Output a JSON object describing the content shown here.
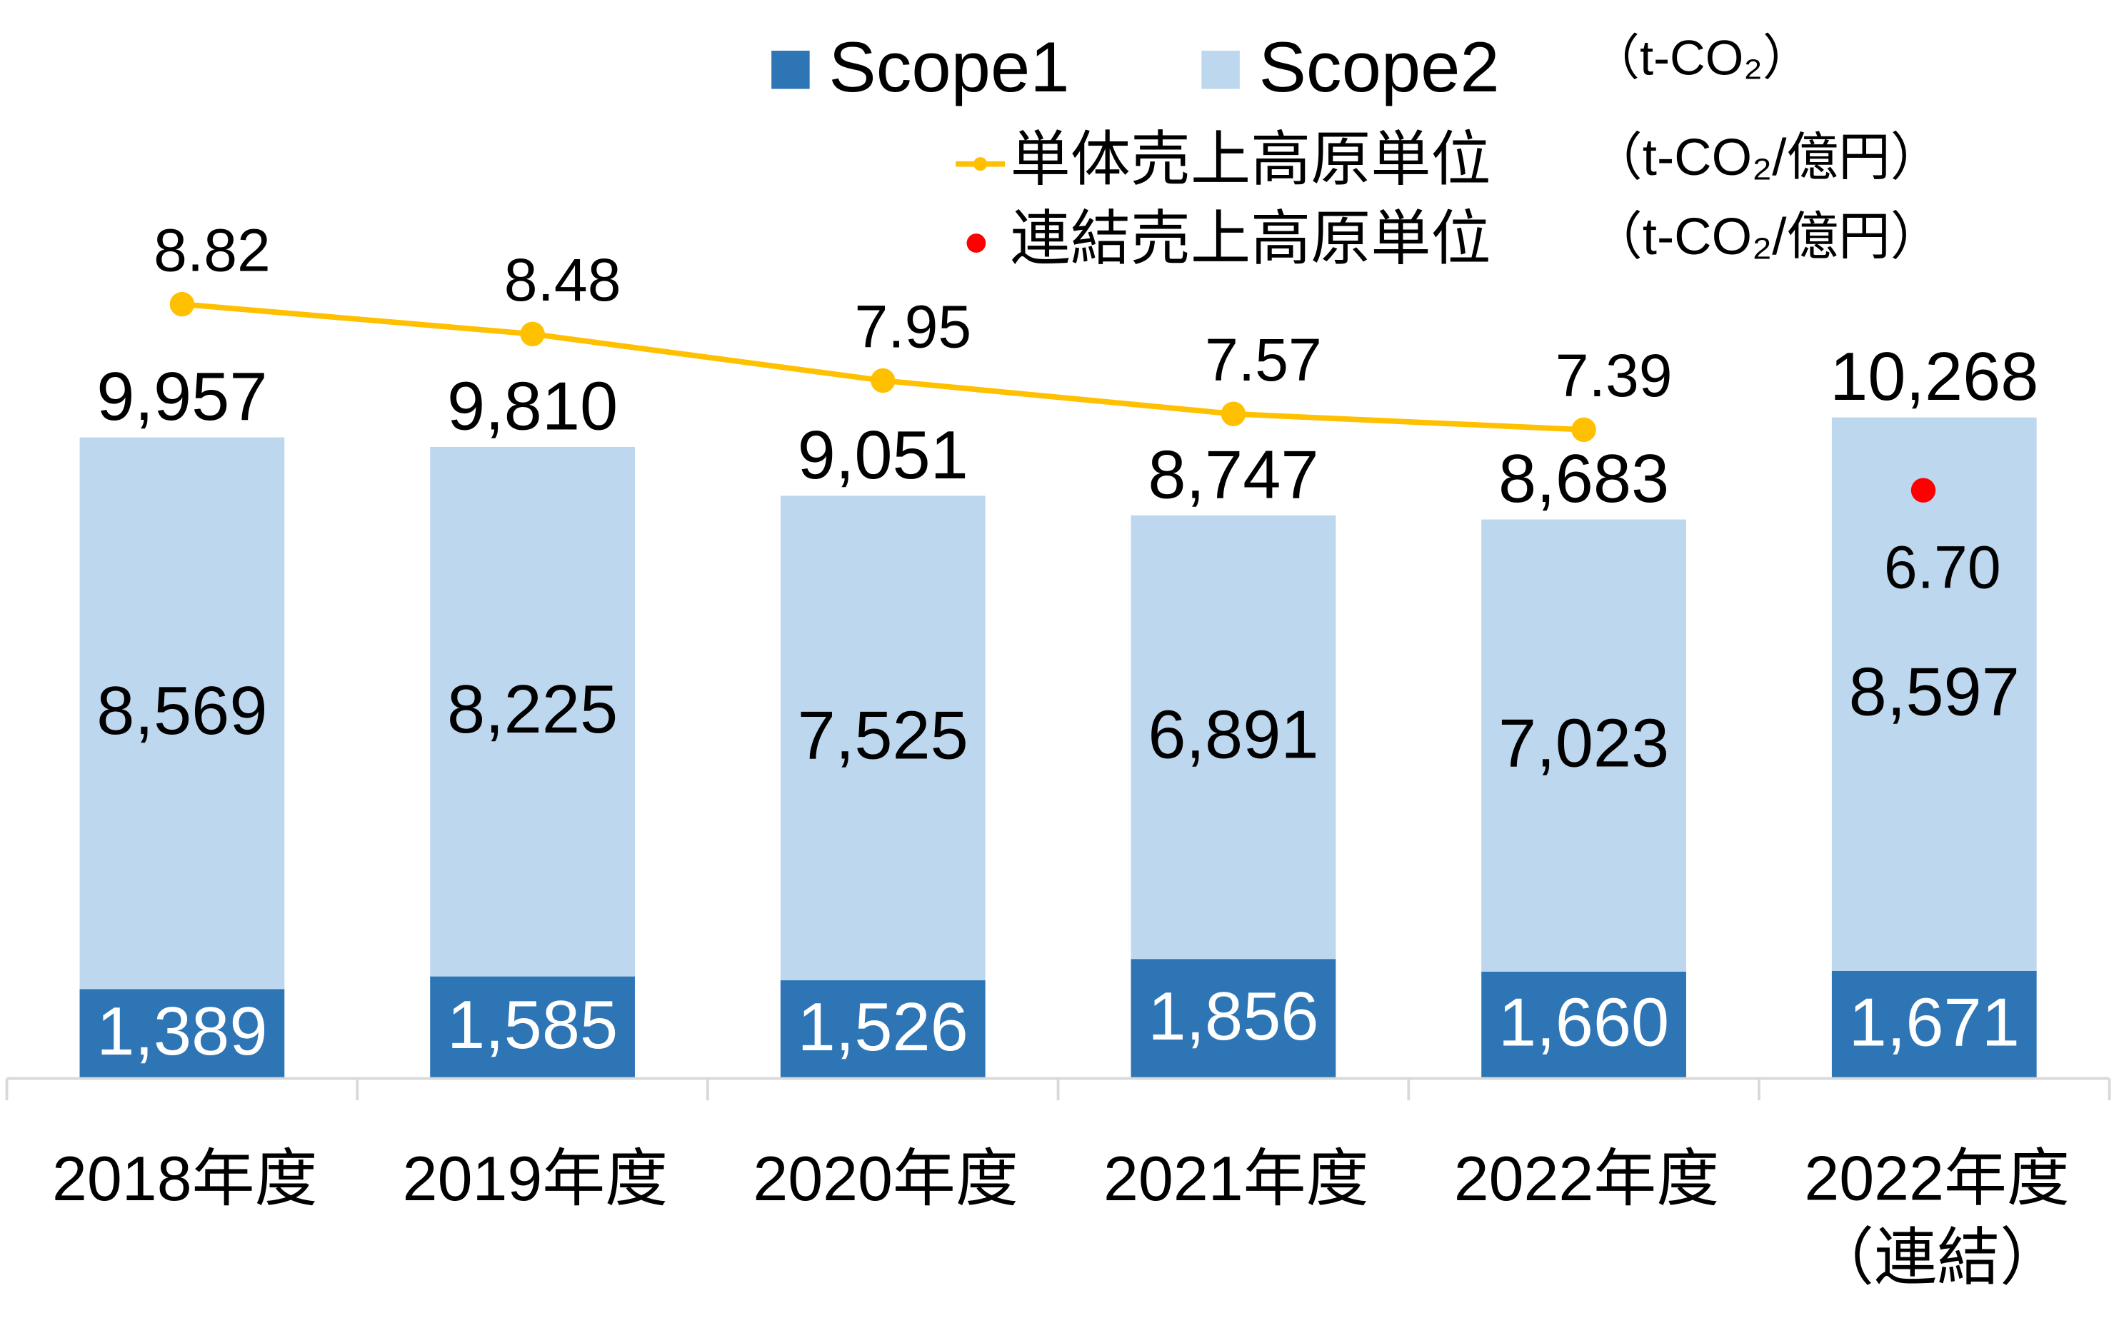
{
  "chart_data": {
    "type": "bar",
    "categories": [
      "2018年度",
      "2019年度",
      "2020年度",
      "2021年度",
      "2022年度",
      "2022年度\n（連結）"
    ],
    "series": [
      {
        "name": "Scope1",
        "color": "#2e75b6",
        "values": [
          1389,
          1585,
          1526,
          1856,
          1660,
          1671
        ],
        "value_labels": [
          "1,389",
          "1,585",
          "1,526",
          "1,856",
          "1,660",
          "1,671"
        ]
      },
      {
        "name": "Scope2",
        "color": "#bdd7ee",
        "values": [
          8569,
          8225,
          7525,
          6891,
          7023,
          8597
        ],
        "value_labels": [
          "8,569",
          "8,225",
          "7,525",
          "6,891",
          "7,023",
          "8,597"
        ]
      },
      {
        "name": "単体売上高原単位",
        "type": "line",
        "axis": "y2",
        "color": "#ffc000",
        "values": [
          8.82,
          8.48,
          7.95,
          7.57,
          7.39,
          null
        ]
      },
      {
        "name": "連結売上高原単位",
        "type": "scatter",
        "axis": "y2",
        "color": "#ff0000",
        "values": [
          null,
          null,
          null,
          null,
          null,
          6.7
        ],
        "value_labels": [
          null,
          null,
          null,
          null,
          null,
          "6.70"
        ]
      }
    ],
    "totals": {
      "values": [
        9957,
        9810,
        9051,
        8747,
        8683,
        10268
      ],
      "value_labels": [
        "9,957",
        "9,810",
        "9,051",
        "8,747",
        "8,683",
        "10,268"
      ]
    },
    "units": [
      "（t-CO₂）",
      "（t-CO₂/億円）",
      "（t-CO₂/億円）"
    ],
    "ylim": [
      0,
      12000
    ],
    "y2lim": [
      0,
      8.8
    ]
  }
}
